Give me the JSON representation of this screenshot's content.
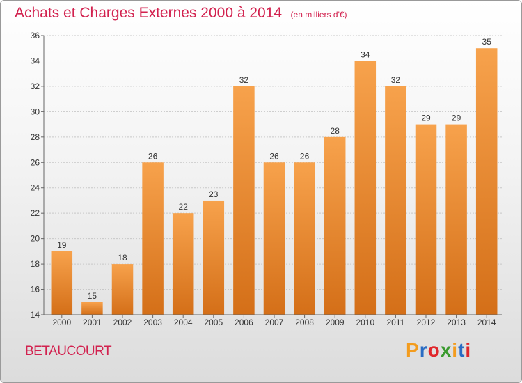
{
  "header": {
    "title": "Achats et Charges Externes 2000 à 2014",
    "unit": "(en milliers d'€)"
  },
  "footer": {
    "commune": "BETAUCOURT",
    "logo": "Proxiti"
  },
  "colors": {
    "bar_top": "#f7a24c",
    "bar_bottom": "#d46f18",
    "title": "#d2224f"
  },
  "chart_data": {
    "type": "bar",
    "categories": [
      "2000",
      "2001",
      "2002",
      "2003",
      "2004",
      "2005",
      "2006",
      "2007",
      "2008",
      "2009",
      "2010",
      "2011",
      "2012",
      "2013",
      "2014"
    ],
    "values": [
      19,
      15,
      18,
      26,
      22,
      23,
      32,
      26,
      26,
      28,
      34,
      32,
      29,
      29,
      35
    ],
    "title": "Achats et Charges Externes 2000 à 2014",
    "ylabel": "",
    "xlabel": "",
    "ylim": [
      14,
      36
    ],
    "yticks": [
      14,
      16,
      18,
      20,
      22,
      24,
      26,
      28,
      30,
      32,
      34,
      36
    ],
    "grid": true
  }
}
